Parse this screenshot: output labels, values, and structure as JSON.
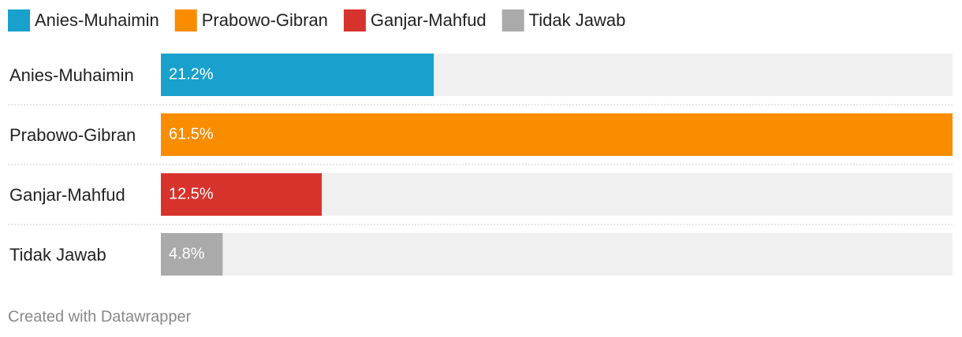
{
  "chart_data": {
    "type": "bar",
    "categories": [
      "Anies-Muhaimin",
      "Prabowo-Gibran",
      "Ganjar-Mahfud",
      "Tidak Jawab"
    ],
    "values": [
      21.2,
      61.5,
      12.5,
      4.8
    ],
    "value_labels": [
      "21.2%",
      "61.5%",
      "12.5%",
      "4.8%"
    ],
    "colors": [
      "#18a1cd",
      "#fa8c00",
      "#d7332d",
      "#aaaaaa"
    ],
    "xlim": [
      0,
      61.5
    ],
    "footer": "Created with Datawrapper"
  }
}
